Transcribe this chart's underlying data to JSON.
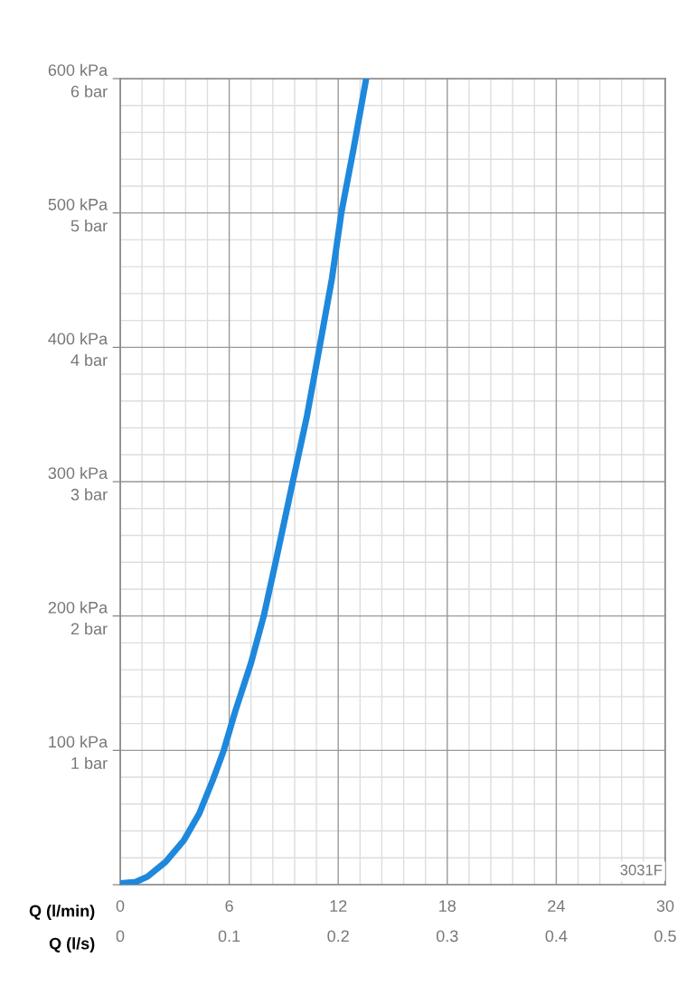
{
  "chart_data": {
    "type": "line",
    "xlabel": "Q (l/min)",
    "x2label": "Q (l/s)",
    "annotations": [
      "3031F"
    ],
    "series": [
      {
        "color": "#1e88dc",
        "x": [
          0,
          0.85,
          1.5,
          2.5,
          3.5,
          4.35,
          5.1,
          5.7,
          6.33,
          7.2,
          7.9,
          8.6,
          9.5,
          10.28,
          10.97,
          11.65,
          12.17,
          12.86,
          13.54
        ],
        "values": [
          1,
          2,
          6,
          17,
          33,
          53,
          78,
          100,
          129,
          165,
          200,
          243,
          300,
          349,
          400,
          451,
          500,
          549,
          600
        ]
      }
    ],
    "xlim": [
      0,
      30
    ],
    "xticks": [
      0,
      6,
      12,
      18,
      24,
      30
    ],
    "x2lim": [
      0,
      0.5
    ],
    "x2ticks": [
      0,
      0.1,
      0.2,
      0.3,
      0.4,
      0.5
    ],
    "ylim": [
      0,
      600
    ],
    "yticks": [
      {
        "value": 0,
        "label": null
      },
      {
        "value": 100,
        "label": "100 kPa"
      },
      {
        "value": 200,
        "label": "200 kPa"
      },
      {
        "value": 300,
        "label": "300 kPa"
      },
      {
        "value": 400,
        "label": "400 kPa"
      },
      {
        "value": 500,
        "label": "500 kPa"
      },
      {
        "value": 600,
        "label": "600 kPa"
      }
    ],
    "y2lim": [
      0,
      6
    ],
    "y2ticks": [
      {
        "value": 0,
        "label": null
      },
      {
        "value": 1,
        "label": "1 bar"
      },
      {
        "value": 2,
        "label": "2 bar"
      },
      {
        "value": 3,
        "label": "3 bar"
      },
      {
        "value": 4,
        "label": "4 bar"
      },
      {
        "value": 5,
        "label": "5 bar"
      },
      {
        "value": 6,
        "label": "6 bar"
      }
    ],
    "grid": true,
    "marker": "none",
    "line_style": "solid"
  }
}
